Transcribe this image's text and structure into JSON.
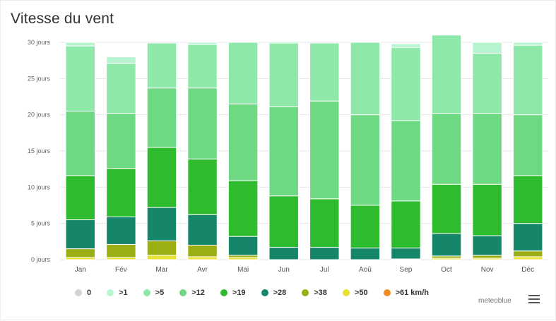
{
  "title": "Vitesse du vent",
  "credit": "meteoblue",
  "menu_icon": "hamburger-menu-icon",
  "chart_data": {
    "type": "bar",
    "stacked": true,
    "title": "Vitesse du vent",
    "ylim": [
      0,
      30
    ],
    "y_ticks": [
      "0 jours",
      "5 jours",
      "10 jours",
      "15 jours",
      "20 jours",
      "25 jours",
      "30 jours"
    ],
    "categories": [
      "Jan",
      "Fév",
      "Mar",
      "Avr",
      "Mai",
      "Jun",
      "Jul",
      "Aoû",
      "Sep",
      "Oct",
      "Nov",
      "Déc"
    ],
    "legend_position": "bottom",
    "grid": true,
    "series": [
      {
        "name": "0",
        "color": "#d3d3d3",
        "values": [
          0,
          0,
          0,
          0,
          0,
          0,
          0,
          0,
          0,
          0,
          0,
          0
        ]
      },
      {
        "name": ">1",
        "color": "#b7f5d0",
        "values": [
          0.5,
          0.9,
          0,
          0.3,
          0,
          0.2,
          0,
          0,
          0.5,
          0,
          1.5,
          0.4
        ]
      },
      {
        "name": ">5",
        "color": "#8ee8a9",
        "values": [
          9.0,
          6.9,
          6.2,
          6.0,
          8.5,
          8.8,
          8.0,
          10.0,
          10.1,
          10.8,
          8.3,
          9.6
        ]
      },
      {
        "name": ">12",
        "color": "#6fd883",
        "values": [
          8.9,
          7.6,
          8.2,
          9.8,
          10.6,
          12.3,
          13.5,
          12.5,
          11.1,
          9.8,
          9.8,
          8.4
        ]
      },
      {
        "name": ">19",
        "color": "#2ebc2e",
        "values": [
          6.1,
          6.7,
          8.3,
          7.7,
          7.7,
          7.1,
          6.7,
          5.9,
          6.5,
          6.8,
          7.1,
          6.6
        ]
      },
      {
        "name": ">28",
        "color": "#15866a",
        "values": [
          4.0,
          3.8,
          4.6,
          4.2,
          2.6,
          1.7,
          1.7,
          1.6,
          1.5,
          3.1,
          2.7,
          3.8
        ]
      },
      {
        "name": ">38",
        "color": "#9bae14",
        "values": [
          1.2,
          1.8,
          2.0,
          1.6,
          0.3,
          0,
          0,
          0,
          0.1,
          0.3,
          0.4,
          0.8
        ]
      },
      {
        "name": ">50",
        "color": "#e8e234",
        "values": [
          0.3,
          0.3,
          0.6,
          0.4,
          0.3,
          0,
          0,
          0,
          0,
          0.2,
          0.2,
          0.4
        ]
      },
      {
        "name": ">61 km/h",
        "color": "#f08c28",
        "values": [
          0,
          0,
          0,
          0,
          0,
          0,
          0,
          0,
          0,
          0,
          0,
          0
        ]
      }
    ]
  }
}
